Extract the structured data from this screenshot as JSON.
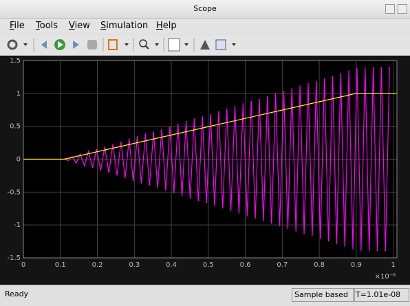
{
  "window": {
    "title": "Scope",
    "menu": [
      "File",
      "Tools",
      "View",
      "Simulation",
      "Help"
    ]
  },
  "chart_data": {
    "type": "line",
    "x_scale_label": "×10⁻⁸",
    "xlim": [
      0,
      1.01
    ],
    "ylim": [
      -1.5,
      1.5
    ],
    "xticks": [
      0,
      0.1,
      0.2,
      0.3,
      0.4,
      0.5,
      0.6,
      0.7,
      0.8,
      0.9,
      1
    ],
    "yticks": [
      -1.5,
      -1,
      -0.5,
      0,
      0.5,
      1,
      1.5
    ],
    "grid": true,
    "series": [
      {
        "color": "#ff00ff",
        "x": [
          0,
          0.11,
          0.121,
          0.132,
          0.143,
          0.154,
          0.165,
          0.176,
          0.187,
          0.198,
          0.209,
          0.22,
          0.231,
          0.242,
          0.253,
          0.264,
          0.275,
          0.286,
          0.297,
          0.308,
          0.319,
          0.33,
          0.341,
          0.352,
          0.363,
          0.374,
          0.385,
          0.396,
          0.407,
          0.418,
          0.429,
          0.44,
          0.451,
          0.462,
          0.473,
          0.484,
          0.495,
          0.506,
          0.517,
          0.528,
          0.539,
          0.55,
          0.561,
          0.572,
          0.583,
          0.594,
          0.605,
          0.616,
          0.627,
          0.638,
          0.649,
          0.66,
          0.671,
          0.682,
          0.693,
          0.704,
          0.715,
          0.726,
          0.737,
          0.748,
          0.759,
          0.77,
          0.781,
          0.792,
          0.803,
          0.814,
          0.825,
          0.836,
          0.847,
          0.858,
          0.869,
          0.88,
          0.891,
          0.902,
          0.913,
          0.924,
          0.935,
          0.946,
          0.957,
          0.968,
          0.979,
          0.99
        ],
        "values": [
          0,
          0,
          -0.02,
          0.04,
          -0.06,
          0.08,
          -0.1,
          0.12,
          -0.13,
          0.15,
          -0.17,
          0.19,
          -0.21,
          0.23,
          -0.25,
          0.27,
          -0.29,
          0.31,
          -0.33,
          0.35,
          -0.37,
          0.39,
          -0.4,
          0.42,
          -0.44,
          0.46,
          -0.48,
          0.5,
          -0.52,
          0.54,
          -0.56,
          0.58,
          -0.6,
          0.62,
          -0.64,
          0.65,
          -0.67,
          0.69,
          -0.71,
          0.73,
          -0.75,
          0.77,
          -0.79,
          0.81,
          -0.83,
          0.85,
          -0.87,
          0.89,
          -0.9,
          0.92,
          -0.94,
          0.96,
          -0.98,
          1,
          -1.02,
          1.04,
          -1.06,
          1.08,
          -1.1,
          1.12,
          -1.14,
          1.16,
          -1.17,
          1.19,
          -1.21,
          1.23,
          -1.25,
          1.27,
          -1.29,
          1.31,
          -1.33,
          1.35,
          -1.37,
          1.39,
          -1.4,
          1.4,
          -1.4,
          1.4,
          -1.4,
          1.4,
          -1.4,
          1.4
        ]
      },
      {
        "color": "#ffff00",
        "x": [
          0,
          0.11,
          0.9,
          1.01
        ],
        "values": [
          0,
          0,
          1,
          1
        ]
      }
    ]
  },
  "status": {
    "left": "Ready",
    "mode": "Sample based",
    "time": "T=1.01e-08"
  }
}
